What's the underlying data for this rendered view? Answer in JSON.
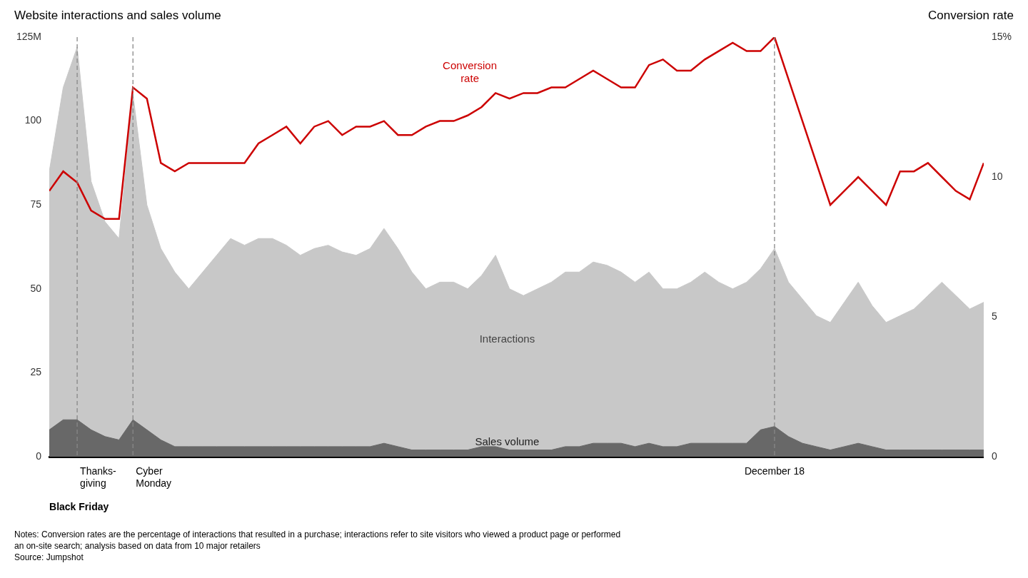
{
  "chart_data": {
    "type": "line",
    "y_label": "Website interactions and sales volume",
    "y2_label": "Conversion rate",
    "notes": "Notes: Conversion rates are the percentage of interactions that resulted in a purchase; interactions refer to site visitors who viewed a product page or performed\nan on-site search; analysis based on data from 10 major retailers\nSource: Jumpshot",
    "x": [
      0,
      1,
      2,
      3,
      4,
      5,
      6,
      7,
      8,
      9,
      10,
      11,
      12,
      13,
      14,
      15,
      16,
      17,
      18,
      19,
      20,
      21,
      22,
      23,
      24,
      25,
      26,
      27,
      28,
      29,
      30,
      31,
      32,
      33,
      34,
      35,
      36,
      37,
      38,
      39,
      40,
      41,
      42,
      43,
      44,
      45,
      46,
      47,
      48,
      49,
      50,
      51,
      52,
      53,
      54,
      55,
      56,
      57,
      58,
      59,
      60,
      61,
      62,
      63,
      64,
      65,
      66,
      67
    ],
    "xlim": [
      0,
      67
    ],
    "ylim": [
      0,
      125
    ],
    "yticks": [
      0,
      25,
      50,
      75,
      100,
      {
        "value": 125,
        "label": "125M"
      }
    ],
    "y2lim": [
      0,
      15
    ],
    "y2ticks": [
      0,
      5,
      10,
      {
        "value": 15,
        "label": "15%"
      }
    ],
    "grid": false,
    "tick_labels": "y",
    "series": [
      {
        "name": "Interactions",
        "type": "area",
        "color": "#c8c8c8",
        "values": [
          85,
          110,
          122,
          82,
          70,
          65,
          108,
          75,
          62,
          55,
          50,
          55,
          60,
          65,
          63,
          65,
          65,
          63,
          60,
          62,
          63,
          61,
          60,
          62,
          68,
          62,
          55,
          50,
          52,
          52,
          50,
          54,
          60,
          50,
          48,
          50,
          52,
          55,
          55,
          58,
          57,
          55,
          52,
          55,
          50,
          50,
          52,
          55,
          52,
          50,
          52,
          56,
          62,
          52,
          47,
          42,
          40,
          46,
          52,
          45,
          40,
          42,
          44,
          48,
          52,
          48,
          44,
          46
        ]
      },
      {
        "name": "Sales volume",
        "type": "area",
        "color": "#686868",
        "values": [
          8,
          11,
          11,
          8,
          6,
          5,
          11,
          8,
          5,
          3,
          3,
          3,
          3,
          3,
          3,
          3,
          3,
          3,
          3,
          3,
          3,
          3,
          3,
          3,
          4,
          3,
          2,
          2,
          2,
          2,
          2,
          3,
          3,
          2,
          2,
          2,
          2,
          3,
          3,
          4,
          4,
          4,
          3,
          4,
          3,
          3,
          4,
          4,
          4,
          4,
          4,
          8,
          9,
          6,
          4,
          3,
          2,
          3,
          4,
          3,
          2,
          2,
          2,
          2,
          2,
          2,
          2,
          2
        ]
      },
      {
        "name": "Conversion\nrate",
        "type": "line",
        "color": "#cc0000",
        "axis": "y2",
        "values": [
          9.5,
          10.2,
          9.8,
          8.8,
          8.5,
          8.5,
          13.2,
          12.8,
          10.5,
          10.2,
          10.5,
          10.5,
          10.5,
          10.5,
          10.5,
          11.2,
          11.5,
          11.8,
          11.2,
          11.8,
          12.0,
          11.5,
          11.8,
          11.8,
          12.0,
          11.5,
          11.5,
          11.8,
          12.0,
          12.0,
          12.2,
          12.5,
          13.0,
          12.8,
          13.0,
          13.0,
          13.2,
          13.2,
          13.5,
          13.8,
          13.5,
          13.2,
          13.2,
          14.0,
          14.2,
          13.8,
          13.8,
          14.2,
          14.5,
          14.8,
          14.5,
          14.5,
          15.0,
          13.5,
          12.0,
          10.5,
          9.0,
          9.5,
          10.0,
          9.5,
          9.0,
          10.2,
          10.2,
          10.5,
          10.0,
          9.5,
          9.2,
          10.5
        ]
      }
    ],
    "annotations": [
      {
        "x": 2,
        "text": "Thanks-\ngiving"
      },
      {
        "x": 6,
        "text": "Cyber\nMonday"
      },
      {
        "x": 52,
        "text": "December 18"
      },
      {
        "text": "Black Friday"
      }
    ]
  }
}
